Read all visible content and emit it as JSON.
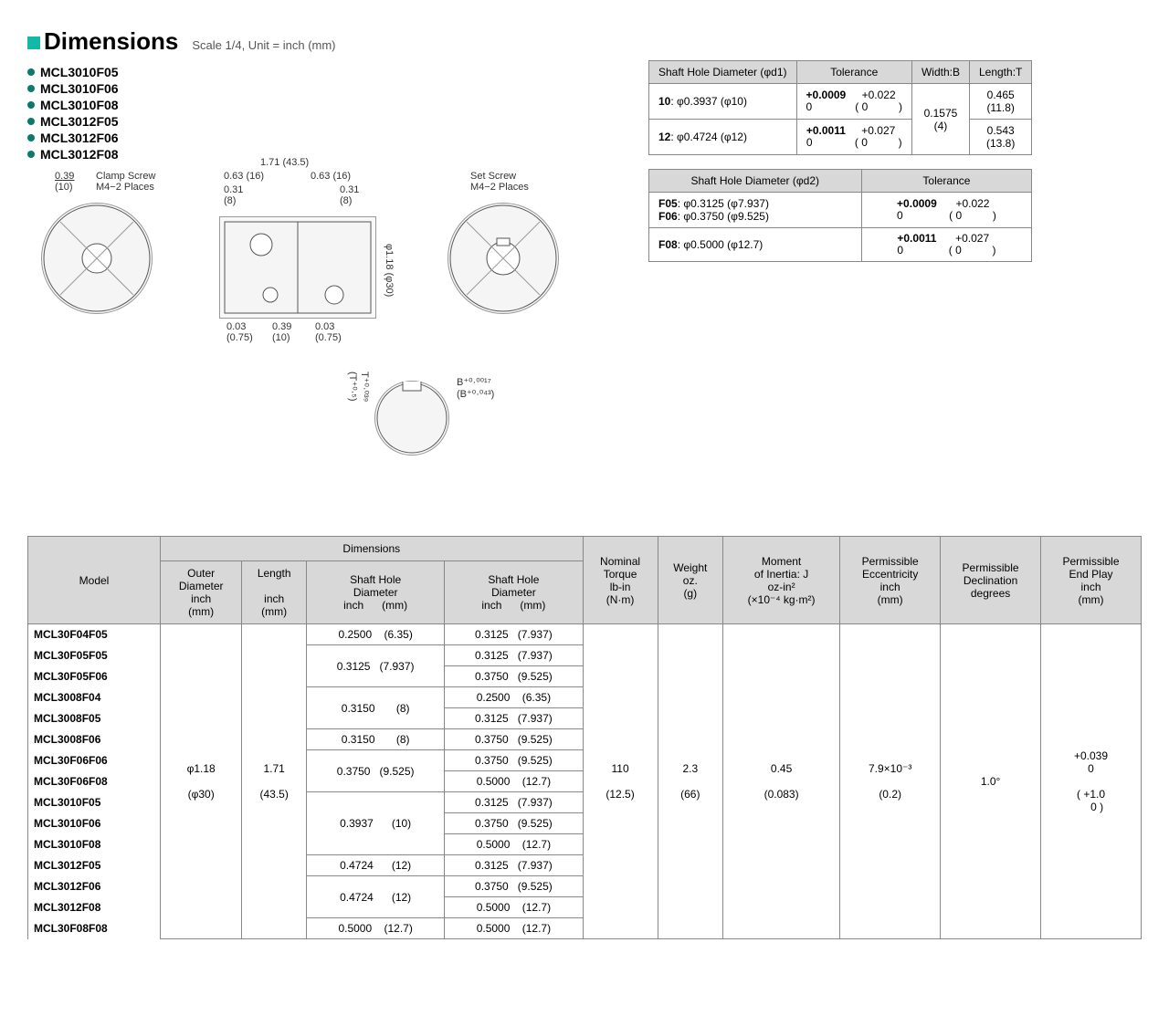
{
  "header": {
    "title": "Dimensions",
    "scale": "Scale 1/4, Unit = inch (mm)"
  },
  "models": [
    "MCL3010F05",
    "MCL3010F06",
    "MCL3010F08",
    "MCL3012F05",
    "MCL3012F06",
    "MCL3012F08"
  ],
  "diagram": {
    "clamp_screw": "Clamp Screw\nM4−2 Places",
    "set_screw": "Set Screw\nM4−2 Places",
    "dim_039": "0.39",
    "dim_039mm": "(10)",
    "dim_171": "1.71 (43.5)",
    "dim_063_1": "0.63 (16)",
    "dim_063_2": "0.63 (16)",
    "dim_031_1": "0.31\n(8)",
    "dim_031_2": "0.31\n(8)",
    "dim_phi118": "φ1.18 (φ30)",
    "dim_003_1": "0.03\n(0.75)",
    "dim_039_b": "0.39\n(10)",
    "dim_003_2": "0.03\n(0.75)",
    "t_label": "T⁺⁰·⁰³⁹\n(T⁺⁰·⁵)",
    "b_label": "B⁺⁰·⁰⁰¹⁷\n(B⁺⁰·⁰⁴³)"
  },
  "tol_d1": {
    "header": [
      "Shaft Hole Diameter (φd1)",
      "Tolerance",
      "Width:B",
      "Length:T"
    ],
    "rows": [
      {
        "dia": "10: φ0.3937 (φ10)",
        "tol": "+0.0009\n0",
        "tol_mm": "+0.022\n0",
        "width": "0.1575\n(4)",
        "length": "0.465\n(11.8)"
      },
      {
        "dia": "12: φ0.4724 (φ12)",
        "tol": "+0.0011\n0",
        "tol_mm": "+0.027\n0",
        "width": "",
        "length": "0.543\n(13.8)"
      }
    ]
  },
  "tol_d2": {
    "header": [
      "Shaft Hole Diameter (φd2)",
      "Tolerance"
    ],
    "rows": [
      {
        "dia": "F05: φ0.3125 (φ7.937)\nF06: φ0.3750 (φ9.525)",
        "tol": "+0.0009\n0",
        "tol_mm": "+0.022\n0"
      },
      {
        "dia": "F08: φ0.5000 (φ12.7)",
        "tol": "+0.0011\n0",
        "tol_mm": "+0.027\n0"
      }
    ]
  },
  "main": {
    "headers": {
      "model": "Model",
      "dimensions": "Dimensions",
      "outer": "Outer\nDiameter\ninch\n(mm)",
      "length": "Length\n\ninch\n(mm)",
      "sh1": "Shaft Hole\nDiameter\ninch      (mm)",
      "sh2": "Shaft Hole\nDiameter\ninch      (mm)",
      "torque": "Nominal\nTorque\nlb-in\n(N·m)",
      "weight": "Weight\noz.\n(g)",
      "inertia": "Moment\nof Inertia: J\noz-in²\n(×10⁻⁴ kg·m²)",
      "ecc": "Permissible\nEccentricity\ninch\n(mm)",
      "decl": "Permissible\nDeclination\ndegrees",
      "endplay": "Permissible\nEnd Play\ninch\n(mm)"
    },
    "outer": "φ1.18\n\n(φ30)",
    "length": "1.71\n\n(43.5)",
    "torque": "110\n\n(12.5)",
    "weight": "2.3\n\n(66)",
    "inertia": "0.45\n\n(0.083)",
    "ecc": "7.9×10⁻³\n\n(0.2)",
    "decl": "1.0°",
    "endplay": "+0.039\n0\n\n( +1.0\n    0 )",
    "rows": [
      {
        "model": "MCL30F04F05",
        "sh1": "0.2500    (6.35)",
        "sh2": "0.3125   (7.937)",
        "sh1_span": 1
      },
      {
        "model": "MCL30F05F05",
        "sh1": "0.3125   (7.937)",
        "sh2": "0.3125   (7.937)",
        "sh1_span": 2
      },
      {
        "model": "MCL30F05F06",
        "sh1": "",
        "sh2": "0.3750   (9.525)"
      },
      {
        "model": "MCL3008F04",
        "sh1": "0.3150       (8)",
        "sh2": "0.2500    (6.35)",
        "sh1_span": 2
      },
      {
        "model": "MCL3008F05",
        "sh1": "",
        "sh2": "0.3125   (7.937)"
      },
      {
        "model": "MCL3008F06",
        "sh1": "0.3150       (8)",
        "sh2": "0.3750   (9.525)",
        "sh1_span": 1
      },
      {
        "model": "MCL30F06F06",
        "sh1": "0.3750   (9.525)",
        "sh2": "0.3750   (9.525)",
        "sh1_span": 2
      },
      {
        "model": "MCL30F06F08",
        "sh1": "",
        "sh2": "0.5000    (12.7)"
      },
      {
        "model": "MCL3010F05",
        "sh1": "0.3937      (10)",
        "sh2": "0.3125   (7.937)",
        "sh1_span": 3
      },
      {
        "model": "MCL3010F06",
        "sh1": "",
        "sh2": "0.3750   (9.525)"
      },
      {
        "model": "MCL3010F08",
        "sh1": "",
        "sh2": "0.5000    (12.7)"
      },
      {
        "model": "MCL3012F05",
        "sh1": "0.4724      (12)",
        "sh2": "0.3125   (7.937)",
        "sh1_span": 1
      },
      {
        "model": "MCL3012F06",
        "sh1": "0.4724      (12)",
        "sh2": "0.3750   (9.525)",
        "sh1_span": 2
      },
      {
        "model": "MCL3012F08",
        "sh1": "",
        "sh2": "0.5000    (12.7)"
      },
      {
        "model": "MCL30F08F08",
        "sh1": "0.5000    (12.7)",
        "sh2": "0.5000    (12.7)",
        "sh1_span": 1
      }
    ]
  },
  "colors": {
    "teal": "#14b8a6",
    "bullet": "#0b7a6a",
    "header_bg": "#d8d8d8",
    "border": "#888888"
  }
}
